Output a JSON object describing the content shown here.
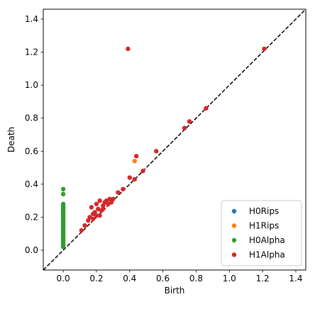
{
  "chart_data": {
    "type": "scatter",
    "title": "",
    "xlabel": "Birth",
    "ylabel": "Death",
    "xlim": [
      -0.12,
      1.46
    ],
    "ylim": [
      -0.12,
      1.46
    ],
    "xticks": [
      "0.0",
      "0.2",
      "0.4",
      "0.6",
      "0.8",
      "1.0",
      "1.2",
      "1.4"
    ],
    "yticks": [
      "0.0",
      "0.2",
      "0.4",
      "0.6",
      "0.8",
      "1.0",
      "1.2",
      "1.4"
    ],
    "tick_values": [
      0.0,
      0.2,
      0.4,
      0.6,
      0.8,
      1.0,
      1.2,
      1.4
    ],
    "diagonal": {
      "style": "dashed",
      "color": "#000000"
    },
    "grid": false,
    "legend_position": "bottom-right",
    "series": [
      {
        "name": "H0Rips",
        "color": "#1f77b4",
        "points": []
      },
      {
        "name": "H1Rips",
        "color": "#ff7f0e",
        "points": [
          [
            0.43,
            0.54
          ]
        ]
      },
      {
        "name": "H0Alpha",
        "color": "#2ca02c",
        "points": [
          [
            0,
            0.02
          ],
          [
            0,
            0.03
          ],
          [
            0,
            0.04
          ],
          [
            0,
            0.05
          ],
          [
            0,
            0.06
          ],
          [
            0,
            0.07
          ],
          [
            0,
            0.08
          ],
          [
            0,
            0.09
          ],
          [
            0,
            0.1
          ],
          [
            0,
            0.11
          ],
          [
            0,
            0.12
          ],
          [
            0,
            0.13
          ],
          [
            0,
            0.14
          ],
          [
            0,
            0.15
          ],
          [
            0,
            0.16
          ],
          [
            0,
            0.17
          ],
          [
            0,
            0.18
          ],
          [
            0,
            0.19
          ],
          [
            0,
            0.2
          ],
          [
            0,
            0.21
          ],
          [
            0,
            0.22
          ],
          [
            0,
            0.23
          ],
          [
            0,
            0.24
          ],
          [
            0,
            0.25
          ],
          [
            0,
            0.26
          ],
          [
            0,
            0.27
          ],
          [
            0,
            0.28
          ],
          [
            0,
            0.34
          ],
          [
            0,
            0.37
          ]
        ]
      },
      {
        "name": "H1Alpha",
        "color": "#d62728",
        "points": [
          [
            0.39,
            1.22
          ],
          [
            1.21,
            1.22
          ],
          [
            0.86,
            0.86
          ],
          [
            0.76,
            0.78
          ],
          [
            0.73,
            0.74
          ],
          [
            0.56,
            0.6
          ],
          [
            0.44,
            0.57
          ],
          [
            0.48,
            0.48
          ],
          [
            0.4,
            0.44
          ],
          [
            0.43,
            0.43
          ],
          [
            0.36,
            0.37
          ],
          [
            0.33,
            0.35
          ],
          [
            0.3,
            0.31
          ],
          [
            0.28,
            0.31
          ],
          [
            0.26,
            0.3
          ],
          [
            0.25,
            0.29
          ],
          [
            0.22,
            0.3
          ],
          [
            0.24,
            0.27
          ],
          [
            0.2,
            0.28
          ],
          [
            0.17,
            0.26
          ],
          [
            0.21,
            0.25
          ],
          [
            0.23,
            0.24
          ],
          [
            0.19,
            0.23
          ],
          [
            0.18,
            0.22
          ],
          [
            0.22,
            0.21
          ],
          [
            0.24,
            0.25
          ],
          [
            0.15,
            0.18
          ],
          [
            0.16,
            0.2
          ],
          [
            0.13,
            0.15
          ],
          [
            0.11,
            0.12
          ],
          [
            0.27,
            0.28
          ],
          [
            0.29,
            0.29
          ],
          [
            0.2,
            0.21
          ],
          [
            0.18,
            0.19
          ]
        ]
      }
    ]
  }
}
